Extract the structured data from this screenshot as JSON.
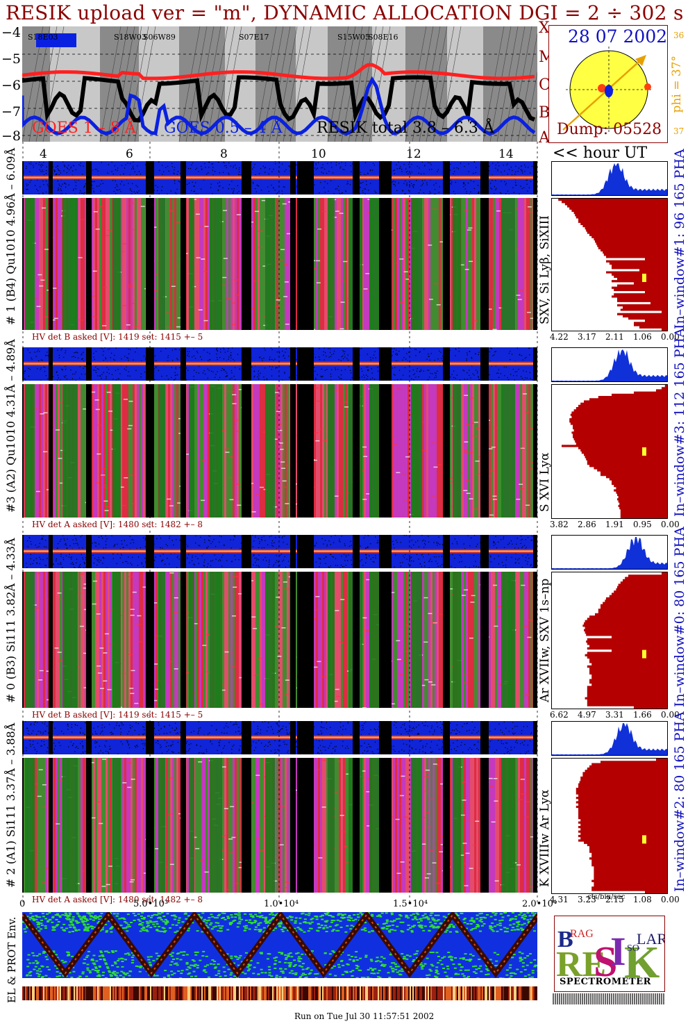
{
  "title": "RESIK upload ver = \"m\", DYNAMIC ALLOCATION  DGI =   2 ÷ 302 s",
  "goes": {
    "y_ticks": [
      "−4",
      "−5",
      "−6",
      "−7",
      "−8"
    ],
    "x_class": [
      "X",
      "M",
      "C",
      "B",
      "A"
    ],
    "legend": {
      "goes_long": "GOES 1 – 8 Å",
      "goes_short": "GOES 0.5 – 4 Å",
      "resik": "RESIK total  3.8 – 6.3 Å"
    },
    "flares": [
      "S18E03",
      "S18W03",
      "S06W89",
      "S07E17",
      "S15W05",
      "S08E16"
    ]
  },
  "hour_axis": {
    "ticks": [
      "4",
      "6",
      "8",
      "10",
      "12",
      "14"
    ],
    "label": "<< hour UT"
  },
  "sun": {
    "date": "28 07 2002",
    "dump": "Dump: 05528",
    "phi": "phi = 37°",
    "phi_top": "36",
    "phi_bottom": "37"
  },
  "detectors": [
    {
      "label": "# 1 (B4) Qu1010 4.96Å – 6.09Å",
      "lines": "SXV, Si Lyβ, SiXIII",
      "window": "In–window#1:   96 165  PHA",
      "hv": "HV det B asked [V]:  1419 set:  1415  +–    5",
      "ticks": [
        "4.22",
        "3.17",
        "2.11",
        "1.06",
        "0.00"
      ],
      "spec": [
        0.98,
        0.95,
        0.92,
        0.9,
        0.88,
        0.86,
        0.84,
        0.83,
        0.82,
        0.8,
        0.8,
        0.78,
        0.76,
        0.74,
        0.73,
        0.72,
        0.7,
        0.68,
        0.66,
        0.65,
        0.64,
        0.63,
        0.62,
        0.6,
        0.58,
        0.57,
        0.55,
        0.2,
        0.55,
        0.52,
        0.5,
        0.5,
        0.25,
        0.55,
        0.5,
        0.48,
        0.45,
        0.5,
        0.3,
        0.45,
        0.5,
        0.48,
        0.2,
        0.48,
        0.5,
        0.45,
        0.45,
        0.15,
        0.45,
        0.4,
        0.42,
        0.05,
        0.45,
        0.4,
        0.35,
        0.2,
        0.3,
        0.3,
        0.25,
        0.05
      ],
      "marker": 0.6
    },
    {
      "label": "#3 (A2) Qu1010 4.31Å – 4.89Å",
      "lines": "S XVI Lyα",
      "window": "In–window#3:   112 165  PHA",
      "hv": "HV det A asked [V]:  1480 set:  1482  +–     8",
      "ticks": [
        "3.82",
        "2.86",
        "1.91",
        "0.95",
        "0.00"
      ],
      "spec": [
        0.02,
        0.05,
        0.1,
        0.3,
        0.5,
        0.62,
        0.7,
        0.75,
        0.78,
        0.8,
        0.82,
        0.84,
        0.86,
        0.87,
        0.86,
        0.88,
        0.88,
        0.87,
        0.85,
        0.85,
        0.84,
        0.86,
        0.85,
        0.85,
        0.84,
        0.83,
        0.82,
        0.95,
        0.8,
        0.78,
        0.77,
        0.75,
        0.74,
        0.73,
        0.72,
        0.72,
        0.7,
        0.66,
        0.63,
        0.6,
        0.6,
        0.55,
        0.52,
        0.5,
        0.5,
        0.48,
        0.46,
        0.48,
        0.46,
        0.45,
        0.44,
        0.45,
        0.44,
        0.43,
        0.44,
        0.43,
        0.42,
        0.42,
        0.42,
        0.42
      ],
      "marker": 0.5
    },
    {
      "label": "# 0 (B3) Si111  3.82Å – 4.33Å",
      "lines": "Ar XVIIw,  SXV 1s–np",
      "window": "In–window#0:   80 165  PHA",
      "hv": "HV det B asked [V]:  1419 set:  1415  +–    5",
      "ticks": [
        "6.62",
        "4.97",
        "3.31",
        "1.66",
        "0.00"
      ],
      "spec": [
        0.05,
        0.35,
        0.38,
        0.4,
        0.42,
        0.44,
        0.45,
        0.46,
        0.48,
        0.5,
        0.52,
        0.55,
        0.56,
        0.58,
        0.6,
        0.6,
        0.62,
        0.62,
        0.65,
        0.7,
        0.72,
        0.74,
        0.75,
        0.76,
        0.74,
        0.75,
        0.74,
        0.73,
        0.5,
        0.72,
        0.73,
        0.72,
        0.7,
        0.72,
        0.5,
        0.72,
        0.74,
        0.72,
        0.7,
        0.7,
        0.68,
        0.72,
        0.7,
        0.7,
        0.7,
        0.68,
        0.68,
        0.7,
        0.7,
        0.68,
        0.72,
        0.72,
        0.72,
        0.72,
        0.72,
        0.74,
        0.72,
        0.72,
        0.72,
        0.3
      ],
      "marker": 0.6
    },
    {
      "label": "# 2 (A1) Si111  3.37Å – 3.88Å",
      "lines": "K XVIIIw  Ar Lyα",
      "window": "In–window#2:   80 165  PHA",
      "hv": "HV det A asked [V]:  1480 set:  1482  +–     8",
      "ticks": [
        "4.31",
        "3.23",
        "2.15",
        "1.08",
        "0.00"
      ],
      "spec": [
        0.1,
        0.6,
        0.68,
        0.7,
        0.72,
        0.74,
        0.76,
        0.76,
        0.78,
        0.78,
        0.79,
        0.8,
        0.8,
        0.82,
        0.82,
        0.82,
        0.8,
        0.82,
        0.8,
        0.82,
        0.8,
        0.82,
        0.8,
        0.8,
        0.8,
        0.8,
        0.8,
        0.78,
        0.8,
        0.78,
        0.8,
        0.78,
        0.8,
        0.78,
        0.8,
        0.78,
        0.8,
        0.75,
        0.72,
        0.7,
        0.7,
        0.7,
        0.68,
        0.68,
        0.7,
        0.68,
        0.68,
        0.68,
        0.66,
        0.66,
        0.66,
        0.66,
        0.66,
        0.66,
        0.68,
        0.66,
        0.66,
        0.68,
        0.68,
        0.2
      ],
      "marker": 0.6
    }
  ],
  "spec_unit": "cts/bin/sec",
  "bottom": {
    "label": "EL & PROT Env.",
    "ticks": [
      "0",
      "5.0•10³",
      "1.0•10⁴",
      "1.5•10⁴",
      "2.0•10⁴"
    ],
    "footer": "Run on Tue Jul 30 11:57:51 2002"
  },
  "logo": {
    "brand": "RESIK",
    "bragg": "BRAGG",
    "solar": "SOLAR",
    "sub": "SPECTROMETER"
  },
  "colors": {
    "title": "#8b0000",
    "goes_long": "#ff2020",
    "goes_short": "#0a20e0",
    "resik": "#000000",
    "spec": "#b40000",
    "pha": "#1030d8"
  }
}
